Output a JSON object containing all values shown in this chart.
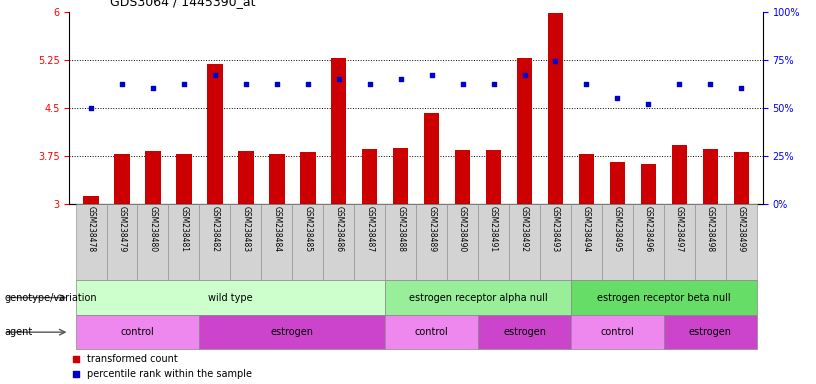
{
  "title": "GDS3064 / 1445390_at",
  "samples": [
    "GSM238478",
    "GSM238479",
    "GSM238480",
    "GSM238481",
    "GSM238482",
    "GSM238483",
    "GSM238484",
    "GSM238485",
    "GSM238486",
    "GSM238487",
    "GSM238488",
    "GSM238489",
    "GSM238490",
    "GSM238491",
    "GSM238492",
    "GSM238493",
    "GSM238494",
    "GSM238495",
    "GSM238496",
    "GSM238497",
    "GSM238498",
    "GSM238499"
  ],
  "bar_values": [
    3.12,
    3.78,
    3.82,
    3.78,
    5.18,
    3.82,
    3.78,
    3.8,
    5.27,
    3.85,
    3.87,
    4.42,
    3.83,
    3.83,
    5.28,
    5.97,
    3.78,
    3.65,
    3.62,
    3.92,
    3.85,
    3.8
  ],
  "dot_percentiles": [
    50,
    62,
    60,
    62,
    67,
    62,
    62,
    62,
    65,
    62,
    65,
    67,
    62,
    62,
    67,
    74,
    62,
    55,
    52,
    62,
    62,
    60
  ],
  "bar_color": "#cc0000",
  "dot_color": "#0000cc",
  "ylim_left": [
    3.0,
    6.0
  ],
  "ylim_right": [
    0,
    100
  ],
  "yticks_left": [
    3.0,
    3.75,
    4.5,
    5.25,
    6.0
  ],
  "ytick_labels_left": [
    "3",
    "3.75",
    "4.5",
    "5.25",
    "6"
  ],
  "yticks_right": [
    0,
    25,
    50,
    75,
    100
  ],
  "hlines": [
    3.75,
    4.5,
    5.25
  ],
  "genotype_groups": [
    {
      "label": "wild type",
      "start": 0,
      "end": 9,
      "color": "#ccffcc"
    },
    {
      "label": "estrogen receptor alpha null",
      "start": 10,
      "end": 15,
      "color": "#99ee99"
    },
    {
      "label": "estrogen receptor beta null",
      "start": 16,
      "end": 21,
      "color": "#66dd66"
    }
  ],
  "agent_groups": [
    {
      "label": "control",
      "start": 0,
      "end": 3,
      "color": "#ee88ee"
    },
    {
      "label": "estrogen",
      "start": 4,
      "end": 9,
      "color": "#cc44cc"
    },
    {
      "label": "control",
      "start": 10,
      "end": 12,
      "color": "#ee88ee"
    },
    {
      "label": "estrogen",
      "start": 13,
      "end": 15,
      "color": "#cc44cc"
    },
    {
      "label": "control",
      "start": 16,
      "end": 18,
      "color": "#ee88ee"
    },
    {
      "label": "estrogen",
      "start": 19,
      "end": 21,
      "color": "#cc44cc"
    }
  ],
  "legend_bar_label": "transformed count",
  "legend_dot_label": "percentile rank within the sample",
  "geno_label": "genotype/variation",
  "agent_label": "agent"
}
